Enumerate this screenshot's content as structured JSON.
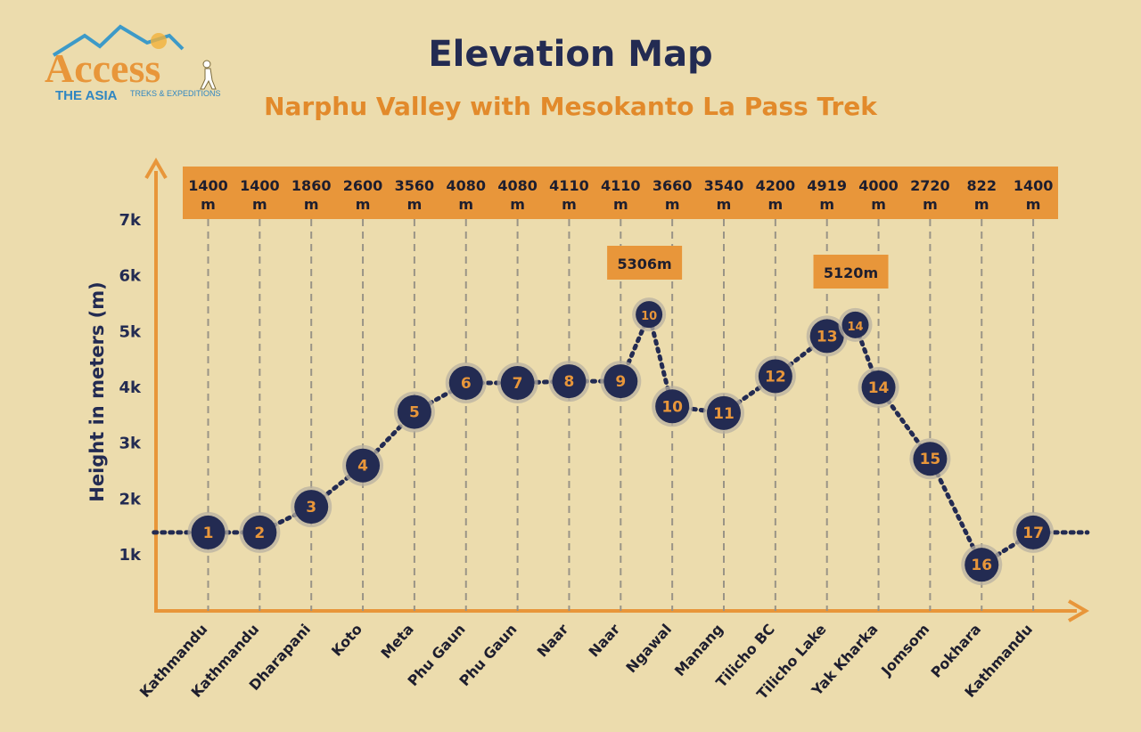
{
  "brand": {
    "name": "Access",
    "tagline_left": "THE ASIA",
    "tagline_right": "TREKS & EXPEDITIONS"
  },
  "title": "Elevation Map",
  "subtitle": "Narphu Valley with Mesokanto La Pass Trek",
  "colors": {
    "background": "#ecdcad",
    "navy": "#232b52",
    "orange": "#e28a2b",
    "band": "#e8963a"
  },
  "chart_data": {
    "type": "line",
    "ylabel": "Height in meters (m)",
    "y_ticks": [
      "1k",
      "2k",
      "3k",
      "4k",
      "5k",
      "6k",
      "7k"
    ],
    "ylim": [
      0,
      7000
    ],
    "altitude_labels": [
      "1400 m",
      "1400 m",
      "1860 m",
      "2600 m",
      "3560 m",
      "4080 m",
      "4080 m",
      "4110 m",
      "4110 m",
      "3660 m",
      "3540 m",
      "4200 m",
      "4919 m",
      "4000 m",
      "2720 m",
      "822 m",
      "1400 m"
    ],
    "categories": [
      "Kathmandu",
      "Kathmandu",
      "Dharapani",
      "Koto",
      "Meta",
      "Phu Gaun",
      "Phu Gaun",
      "Naar",
      "Naar",
      "Ngawal",
      "Manang",
      "Tilicho BC",
      "Tilicho Lake",
      "Yak Kharka",
      "Jomsom",
      "Pokhara",
      "Kathmandu"
    ],
    "points": [
      {
        "day": "1",
        "x": 1,
        "y": 1400
      },
      {
        "day": "2",
        "x": 2,
        "y": 1400
      },
      {
        "day": "3",
        "x": 3,
        "y": 1860
      },
      {
        "day": "4",
        "x": 4,
        "y": 2600
      },
      {
        "day": "5",
        "x": 5,
        "y": 3560
      },
      {
        "day": "6",
        "x": 6,
        "y": 4080
      },
      {
        "day": "7",
        "x": 7,
        "y": 4080
      },
      {
        "day": "8",
        "x": 8,
        "y": 4110
      },
      {
        "day": "9",
        "x": 9,
        "y": 4110
      },
      {
        "day": "10",
        "x": 9.55,
        "y": 5306,
        "peak": true
      },
      {
        "day": "10",
        "x": 10,
        "y": 3660
      },
      {
        "day": "11",
        "x": 11,
        "y": 3540
      },
      {
        "day": "12",
        "x": 12,
        "y": 4200
      },
      {
        "day": "13",
        "x": 13,
        "y": 4919
      },
      {
        "day": "14",
        "x": 13.55,
        "y": 5120,
        "peak": true
      },
      {
        "day": "14",
        "x": 14,
        "y": 4000
      },
      {
        "day": "15",
        "x": 15,
        "y": 2720
      },
      {
        "day": "16",
        "x": 16,
        "y": 822
      },
      {
        "day": "17",
        "x": 17,
        "y": 1400
      }
    ],
    "peak_labels": [
      {
        "text": "5306m",
        "x": 9.55
      },
      {
        "text": "5120m",
        "x": 13.55
      }
    ]
  }
}
